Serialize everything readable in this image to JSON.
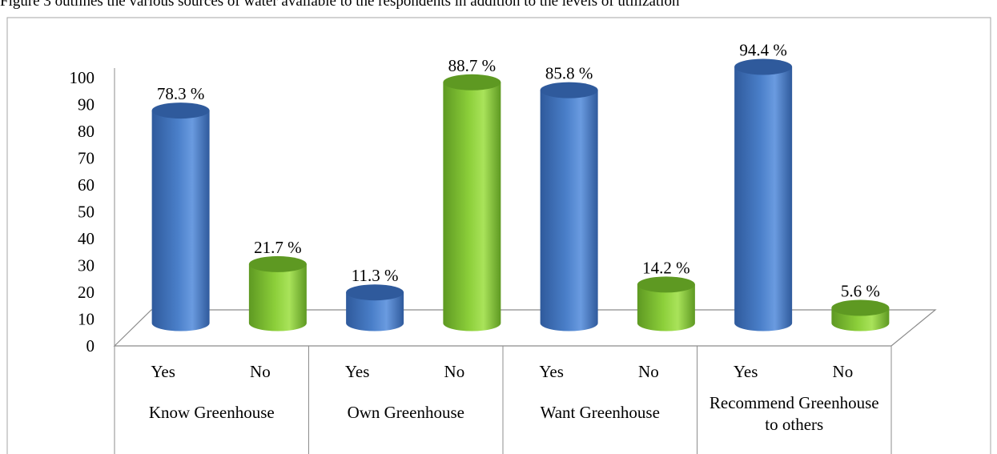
{
  "caption": "Figure 3 outlines the various sources of water available to the respondents in addition to the levels of utilization",
  "colors": {
    "yes": "#4a7fc9",
    "yes_light": "#6a9be0",
    "yes_dark": "#2f5a9c",
    "no": "#8ccf3a",
    "no_light": "#a9e35a",
    "no_dark": "#5e9922",
    "floor": "#ffffff",
    "axis": "#8c8c8c",
    "frame": "#a6a6a6"
  },
  "chart_data": {
    "type": "bar",
    "ylim": [
      0,
      100
    ],
    "y_ticks": [
      "0",
      "10",
      "20",
      "30",
      "40",
      "50",
      "60",
      "70",
      "80",
      "90",
      "100"
    ],
    "groups": [
      "Know Greenhouse",
      "Own Greenhouse",
      "Want Greenhouse",
      "Recommend Greenhouse to others"
    ],
    "subcategories": [
      "Yes",
      "No"
    ],
    "values": [
      78.3,
      21.7,
      11.3,
      88.7,
      85.8,
      14.2,
      94.4,
      5.6
    ],
    "data_labels": [
      "78.3 %",
      "21.7 %",
      "11.3 %",
      "88.7 %",
      "85.8 %",
      "14.2 %",
      "94.4 %",
      "5.6 %"
    ],
    "style": "3d-cylinder",
    "grid": false,
    "legend": "none"
  }
}
